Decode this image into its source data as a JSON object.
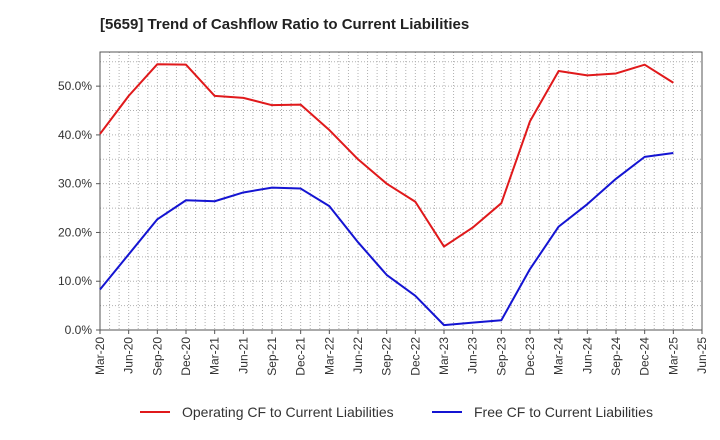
{
  "chart_data": {
    "type": "line",
    "title": "[5659]  Trend of Cashflow Ratio to Current Liabilities",
    "xlabel": "",
    "ylabel": "",
    "x": [
      "Mar-20",
      "Jun-20",
      "Sep-20",
      "Dec-20",
      "Mar-21",
      "Jun-21",
      "Sep-21",
      "Dec-21",
      "Mar-22",
      "Jun-22",
      "Sep-22",
      "Dec-22",
      "Mar-23",
      "Jun-23",
      "Sep-23",
      "Dec-23",
      "Mar-24",
      "Jun-24",
      "Sep-24",
      "Dec-24",
      "Mar-25",
      "Jun-25"
    ],
    "yticks": [
      "0.0%",
      "10.0%",
      "20.0%",
      "30.0%",
      "40.0%",
      "50.0%"
    ],
    "ylim": [
      0,
      57
    ],
    "grid": true,
    "legend_position": "bottom",
    "series": [
      {
        "name": "Operating CF to Current Liabilities",
        "color": "#e0191b",
        "values": [
          40.2,
          48.0,
          54.5,
          54.4,
          48.0,
          47.6,
          46.1,
          46.2,
          41.0,
          35.0,
          30.0,
          26.3,
          17.1,
          21.0,
          26.0,
          42.8,
          53.1,
          52.2,
          52.6,
          54.4,
          50.7,
          null
        ]
      },
      {
        "name": "Free CF to Current Liabilities",
        "color": "#1414d2",
        "values": [
          8.3,
          15.5,
          22.7,
          26.6,
          26.4,
          28.2,
          29.2,
          29.0,
          25.4,
          18.0,
          11.3,
          7.0,
          1.0,
          1.5,
          2.0,
          12.5,
          21.2,
          25.8,
          31.0,
          35.5,
          36.3,
          null
        ]
      }
    ]
  }
}
